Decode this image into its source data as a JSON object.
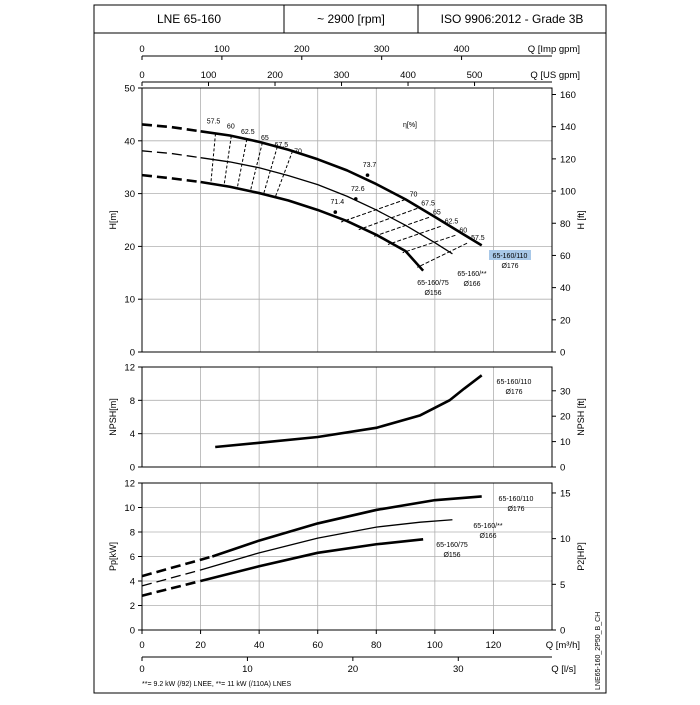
{
  "header": {
    "model": "LNE 65-160",
    "speed": "~ 2900 [rpm]",
    "standard": "ISO 9906:2012 - Grade 3B"
  },
  "footnote": "**= 9.2 kW (/92) LNEE, **= 11 kW (/110A) LNES",
  "doc_code": "LNE65-160_2P50_B_CH",
  "colors": {
    "line": "#000000",
    "grid": "#b0b0b0",
    "highlight": "#a8c8e8"
  },
  "chart_data": [
    {
      "type": "line",
      "id": "head",
      "ylabel": "H[m]",
      "ylabel_right": "H [ft]",
      "x_unit": "Q [m³/h]",
      "xlim": [
        0,
        140
      ],
      "ylim": [
        0,
        50
      ],
      "yticks": [
        0,
        10,
        20,
        30,
        40,
        50
      ],
      "yticks_right": [
        0,
        20,
        40,
        60,
        80,
        100,
        120,
        140,
        160
      ],
      "top_axes": [
        {
          "label": "Q [Imp gpm]",
          "ticks": [
            0,
            100,
            200,
            300,
            400
          ]
        },
        {
          "label": "Q [US gpm]",
          "ticks": [
            0,
            100,
            200,
            300,
            400,
            500
          ]
        }
      ],
      "efficiency_label": "η[%]",
      "series": [
        {
          "name": "65-160/110",
          "diameter": "Ø176",
          "highlight": true,
          "dashed_to": 20,
          "weight": "bold",
          "points": [
            [
              0,
              43.1
            ],
            [
              10,
              42.6
            ],
            [
              20,
              41.8
            ],
            [
              30,
              41.0
            ],
            [
              40,
              39.8
            ],
            [
              50,
              38.3
            ],
            [
              60,
              36.5
            ],
            [
              70,
              34.4
            ],
            [
              80,
              31.8
            ],
            [
              90,
              28.9
            ],
            [
              100,
              25.6
            ],
            [
              110,
              22.2
            ],
            [
              116,
              20.2
            ]
          ]
        },
        {
          "name": "65-160/**",
          "diameter": "Ø166",
          "highlight": false,
          "dashed_to": 20,
          "weight": "normal",
          "points": [
            [
              0,
              38.1
            ],
            [
              10,
              37.6
            ],
            [
              20,
              36.8
            ],
            [
              30,
              36.0
            ],
            [
              40,
              34.9
            ],
            [
              50,
              33.4
            ],
            [
              60,
              31.7
            ],
            [
              70,
              29.5
            ],
            [
              80,
              26.9
            ],
            [
              90,
              24.0
            ],
            [
              100,
              20.7
            ],
            [
              106,
              18.6
            ]
          ]
        },
        {
          "name": "65-160/75",
          "diameter": "Ø156",
          "highlight": false,
          "dashed_to": 20,
          "weight": "bold",
          "points": [
            [
              0,
              33.5
            ],
            [
              10,
              32.9
            ],
            [
              20,
              32.2
            ],
            [
              30,
              31.3
            ],
            [
              40,
              30.1
            ],
            [
              50,
              28.7
            ],
            [
              60,
              26.9
            ],
            [
              70,
              24.8
            ],
            [
              80,
              22.2
            ],
            [
              90,
              19.1
            ],
            [
              96,
              15.4
            ]
          ]
        }
      ],
      "efficiency_left": {
        "labels": [
          57.5,
          60,
          62.5,
          65,
          67.5,
          70
        ],
        "x_top": [
          25.1,
          30.5,
          35.8,
          41.1,
          46.2,
          51.4
        ],
        "x_bottom": [
          23.5,
          28.0,
          32.5,
          37.0,
          41.5,
          45.5
        ]
      },
      "efficiency_right": {
        "labels": [
          70,
          67.5,
          65,
          62.5,
          60,
          57.5
        ],
        "y_top": [
          28.9,
          27.2,
          25.5,
          23.8,
          22.1,
          20.6
        ],
        "x_top": [
          90,
          94,
          98,
          102,
          107,
          111
        ],
        "x_bottom": [
          68,
          74,
          79,
          84,
          89,
          94
        ]
      },
      "bep_points": [
        {
          "label": "73.7",
          "x": 77,
          "y": 33.5
        },
        {
          "label": "72.6",
          "x": 73,
          "y": 29.0
        },
        {
          "label": "71.4",
          "x": 66,
          "y": 26.5
        }
      ]
    },
    {
      "type": "line",
      "id": "npsh",
      "ylabel": "NPSH[m]",
      "ylabel_right": "NPSH [ft]",
      "xlim": [
        0,
        140
      ],
      "ylim": [
        0,
        12
      ],
      "yticks": [
        0,
        4,
        8,
        12
      ],
      "yticks_right": [
        0,
        10,
        20,
        30
      ],
      "series": [
        {
          "name": "65-160/110",
          "diameter": "Ø176",
          "points": [
            [
              25,
              2.4
            ],
            [
              40,
              2.9
            ],
            [
              60,
              3.6
            ],
            [
              80,
              4.7
            ],
            [
              95,
              6.2
            ],
            [
              105,
              8.0
            ],
            [
              110,
              9.4
            ],
            [
              116,
              11.0
            ]
          ]
        }
      ]
    },
    {
      "type": "line",
      "id": "power",
      "ylabel": "Pp[kW]",
      "ylabel_right": "P2[HP]",
      "xlim": [
        0,
        140
      ],
      "ylim": [
        0,
        12
      ],
      "yticks": [
        0,
        2,
        4,
        6,
        8,
        10,
        12
      ],
      "yticks_right": [
        0,
        5,
        10,
        15
      ],
      "x_axes": [
        {
          "label": "Q [m³/h]",
          "ticks": [
            0,
            20,
            40,
            60,
            80,
            100,
            120
          ]
        },
        {
          "label": "Q [l/s]",
          "ticks": [
            0,
            10,
            20,
            30
          ]
        }
      ],
      "series": [
        {
          "name": "65-160/110",
          "diameter": "Ø176",
          "dashed_to": 24,
          "weight": "bold",
          "points": [
            [
              0,
              4.4
            ],
            [
              24,
              6.0
            ],
            [
              40,
              7.3
            ],
            [
              60,
              8.7
            ],
            [
              80,
              9.8
            ],
            [
              100,
              10.6
            ],
            [
              116,
              10.9
            ]
          ]
        },
        {
          "name": "65-160/**",
          "diameter": "Ø166",
          "dashed_to": 20,
          "weight": "normal",
          "points": [
            [
              0,
              3.6
            ],
            [
              20,
              4.9
            ],
            [
              40,
              6.3
            ],
            [
              60,
              7.5
            ],
            [
              80,
              8.4
            ],
            [
              95,
              8.8
            ],
            [
              106,
              9.0
            ]
          ]
        },
        {
          "name": "65-160/75",
          "diameter": "Ø156",
          "dashed_to": 20,
          "weight": "bold",
          "points": [
            [
              0,
              2.8
            ],
            [
              20,
              4.0
            ],
            [
              40,
              5.2
            ],
            [
              60,
              6.3
            ],
            [
              80,
              7.0
            ],
            [
              96,
              7.4
            ]
          ]
        }
      ]
    }
  ]
}
